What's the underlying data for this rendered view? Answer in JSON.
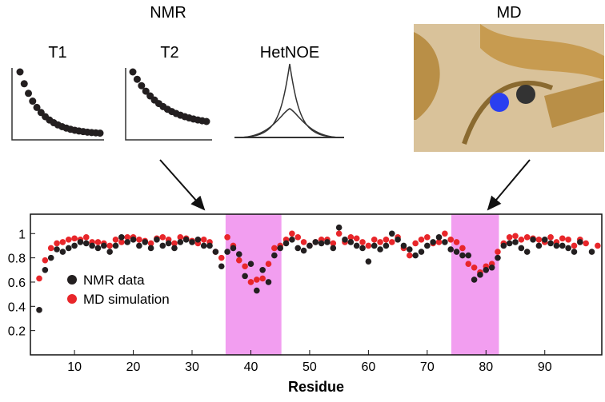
{
  "headings": {
    "nmr": "NMR",
    "md": "MD",
    "t1": "T1",
    "t2": "T2",
    "hetnoe": "HetNOE"
  },
  "chart_data": {
    "type": "scatter",
    "xlabel": "Residue",
    "x": [
      4,
      5,
      6,
      7,
      8,
      9,
      10,
      11,
      12,
      13,
      14,
      15,
      16,
      17,
      18,
      19,
      20,
      21,
      22,
      23,
      24,
      25,
      26,
      27,
      28,
      29,
      30,
      31,
      32,
      33,
      34,
      35,
      36,
      37,
      38,
      39,
      40,
      41,
      42,
      43,
      44,
      45,
      46,
      47,
      48,
      49,
      50,
      51,
      52,
      53,
      54,
      55,
      56,
      57,
      58,
      59,
      60,
      61,
      62,
      63,
      64,
      65,
      66,
      67,
      68,
      69,
      70,
      71,
      72,
      73,
      74,
      75,
      76,
      77,
      78,
      79,
      80,
      81,
      82,
      83,
      84,
      85,
      86,
      87,
      88,
      89,
      90,
      91,
      92,
      93,
      94,
      95,
      96,
      97,
      98,
      99
    ],
    "series": [
      {
        "name": "NMR data",
        "color": "#231f20",
        "values": [
          0.37,
          0.7,
          0.8,
          0.87,
          0.85,
          0.88,
          0.9,
          0.93,
          0.92,
          0.9,
          0.88,
          0.9,
          0.85,
          0.9,
          0.97,
          0.93,
          0.95,
          0.9,
          0.93,
          0.88,
          0.95,
          0.9,
          0.92,
          0.88,
          0.93,
          0.95,
          0.93,
          0.95,
          0.9,
          0.9,
          0.85,
          0.73,
          0.85,
          0.88,
          0.83,
          0.65,
          0.75,
          0.53,
          0.7,
          0.6,
          0.82,
          0.88,
          0.92,
          0.95,
          0.88,
          0.86,
          0.9,
          0.93,
          0.92,
          0.93,
          0.88,
          1.05,
          0.95,
          0.93,
          0.9,
          0.88,
          0.77,
          0.9,
          0.87,
          0.9,
          1.0,
          0.95,
          0.9,
          0.87,
          0.82,
          0.85,
          0.9,
          0.93,
          0.97,
          0.93,
          0.87,
          0.85,
          0.82,
          0.82,
          0.62,
          0.66,
          0.7,
          0.72,
          0.8,
          0.9,
          0.92,
          0.93,
          0.88,
          0.85,
          0.95,
          0.9,
          0.95,
          0.92,
          0.9,
          0.9,
          0.88,
          0.85,
          0.93,
          null,
          0.85,
          null
        ]
      },
      {
        "name": "MD simulation",
        "color": "#e8262a",
        "values": [
          0.63,
          0.78,
          0.88,
          0.92,
          0.93,
          0.95,
          0.96,
          0.95,
          0.97,
          0.93,
          0.93,
          0.92,
          0.9,
          0.95,
          0.93,
          0.97,
          0.97,
          0.95,
          0.94,
          0.92,
          0.96,
          0.97,
          0.95,
          0.92,
          0.97,
          0.96,
          0.94,
          0.92,
          0.95,
          0.93,
          0.85,
          0.8,
          0.97,
          0.9,
          0.78,
          0.73,
          0.6,
          0.62,
          0.63,
          0.75,
          0.88,
          0.9,
          0.95,
          1.0,
          0.97,
          0.93,
          0.9,
          0.93,
          0.95,
          0.95,
          0.92,
          1.0,
          0.93,
          0.97,
          0.96,
          0.93,
          0.9,
          0.95,
          0.93,
          0.95,
          0.93,
          0.97,
          0.88,
          0.82,
          0.92,
          0.95,
          0.97,
          0.92,
          0.93,
          1.0,
          0.95,
          0.93,
          0.88,
          0.75,
          0.72,
          0.68,
          0.73,
          0.75,
          0.85,
          0.92,
          0.97,
          0.98,
          0.95,
          0.97,
          0.96,
          0.95,
          0.93,
          0.97,
          0.93,
          0.96,
          0.95,
          0.9,
          0.95,
          0.92,
          null,
          0.9
        ]
      }
    ],
    "xlim": [
      2.5,
      99.7
    ],
    "ylim": [
      0,
      1.16
    ],
    "xticks": [
      10,
      20,
      30,
      40,
      50,
      60,
      70,
      80,
      90
    ],
    "yticks": [
      0.2,
      0.4,
      0.6,
      0.8,
      1
    ],
    "highlight_ranges": [
      [
        35.7,
        45.2
      ],
      [
        74.1,
        82.2
      ]
    ],
    "highlight_color": "#f29ef0",
    "legend": "center-left"
  }
}
